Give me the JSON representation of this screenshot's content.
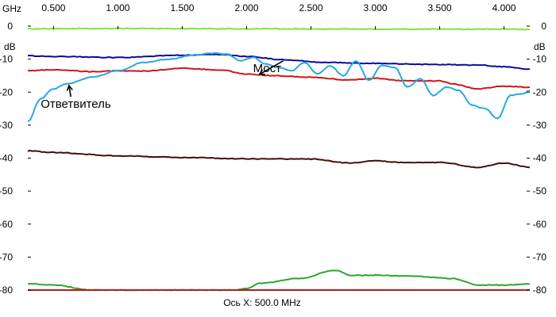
{
  "chart_data": {
    "type": "line",
    "x_unit": "GHz",
    "y_unit_left": "dB",
    "y_unit_right": "dB",
    "xlim": [
      0.3,
      4.2
    ],
    "ylim": [
      -80,
      0
    ],
    "x_ticks": [
      {
        "value": 0.5,
        "label": "0.500"
      },
      {
        "value": 1.0,
        "label": "1.000"
      },
      {
        "value": 1.5,
        "label": "1.500"
      },
      {
        "value": 2.0,
        "label": "2.000"
      },
      {
        "value": 2.5,
        "label": "2.500"
      },
      {
        "value": 3.0,
        "label": "3.000"
      },
      {
        "value": 3.5,
        "label": "3.500"
      },
      {
        "value": 4.0,
        "label": "4.000"
      }
    ],
    "y_ticks": [
      {
        "value": 0,
        "label": "0"
      },
      {
        "value": -10,
        "label": "-10"
      },
      {
        "value": -20,
        "label": "-20"
      },
      {
        "value": -30,
        "label": "-30"
      },
      {
        "value": -40,
        "label": "-40"
      },
      {
        "value": -50,
        "label": "-50"
      },
      {
        "value": -60,
        "label": "-60"
      },
      {
        "value": -70,
        "label": "-70"
      },
      {
        "value": -80,
        "label": "-80"
      }
    ],
    "grid": false,
    "footer": "Ось X: 500.0 MHz",
    "series": [
      {
        "color": "#7ee63a",
        "x": [
          0.3,
          1.0,
          2.0,
          3.0,
          4.0,
          4.2
        ],
        "y": [
          -0.8,
          -0.7,
          -0.8,
          -0.9,
          -0.9,
          -1.0
        ]
      },
      {
        "color": "#0a0aa0",
        "x": [
          0.3,
          0.5,
          1.0,
          1.5,
          1.8,
          2.0,
          2.3,
          2.6,
          3.0,
          3.4,
          3.8,
          4.0,
          4.2
        ],
        "y": [
          -9,
          -9.2,
          -9.5,
          -8.8,
          -8.6,
          -9.2,
          -10.2,
          -11,
          -11.3,
          -11.6,
          -11.8,
          -12.3,
          -13
        ]
      },
      {
        "color": "#d01515",
        "x": [
          0.3,
          0.5,
          0.8,
          1.0,
          1.2,
          1.5,
          1.8,
          2.0,
          2.2,
          2.5,
          2.8,
          3.0,
          3.2,
          3.5,
          3.6,
          3.8,
          4.0,
          4.2
        ],
        "y": [
          -13.5,
          -13.2,
          -13.8,
          -13.5,
          -13.6,
          -12.8,
          -13.3,
          -14.5,
          -15,
          -15.5,
          -16.3,
          -15.8,
          -16.5,
          -16.6,
          -17.5,
          -19,
          -18.2,
          -18.5
        ]
      },
      {
        "color": "#27a9df",
        "x": [
          0.3,
          0.4,
          0.5,
          0.6,
          0.8,
          1.0,
          1.2,
          1.4,
          1.6,
          1.75,
          1.85,
          1.95,
          2.05,
          2.15,
          2.25,
          2.35,
          2.45,
          2.55,
          2.65,
          2.75,
          2.85,
          2.95,
          3.05,
          3.15,
          3.25,
          3.35,
          3.45,
          3.55,
          3.65,
          3.75,
          3.85,
          3.95,
          4.05,
          4.15,
          4.2
        ],
        "y": [
          -29,
          -22,
          -19,
          -17.5,
          -15.5,
          -13.5,
          -11,
          -10,
          -8.7,
          -8.2,
          -8.5,
          -10.5,
          -9.5,
          -11.5,
          -12.5,
          -13.5,
          -11,
          -14.5,
          -12,
          -15,
          -10.5,
          -16.5,
          -12,
          -12.5,
          -18.5,
          -16,
          -21,
          -18.5,
          -19.5,
          -24,
          -25,
          -28,
          -21,
          -20.5,
          -19.5
        ]
      },
      {
        "color": "#4a0b0b",
        "x": [
          0.3,
          0.5,
          1.0,
          1.5,
          2.0,
          2.5,
          2.8,
          3.0,
          3.2,
          3.5,
          3.8,
          4.0,
          4.2
        ],
        "y": [
          -37.8,
          -38.3,
          -39.3,
          -39.8,
          -40.2,
          -40.3,
          -41.5,
          -40.8,
          -41.3,
          -41.3,
          -42.8,
          -41.5,
          -42.8
        ]
      },
      {
        "color": "#2fa52f",
        "x": [
          0.3,
          0.5,
          0.8,
          1.0,
          1.5,
          1.9,
          2.0,
          2.1,
          2.4,
          2.7,
          2.8,
          3.0,
          3.3,
          3.6,
          3.8,
          4.0,
          4.2
        ],
        "y": [
          -78,
          -78.5,
          -80,
          -80,
          -80,
          -80,
          -79.5,
          -78,
          -76.5,
          -74,
          -75.5,
          -75.5,
          -75.8,
          -76.5,
          -78.5,
          -78.5,
          -78.2
        ]
      },
      {
        "color": "#b51c1c",
        "x": [
          0.3,
          4.2
        ],
        "y": [
          -80,
          -80
        ]
      }
    ],
    "annotations": [
      {
        "text": "Мост",
        "x": 2.05,
        "y": -13.9,
        "arrow_to": [
          2.1,
          -14.6
        ]
      },
      {
        "text": "Ответвитель",
        "x": 0.4,
        "y": -24.8,
        "arrow_to": [
          0.62,
          -18.0
        ]
      }
    ]
  }
}
